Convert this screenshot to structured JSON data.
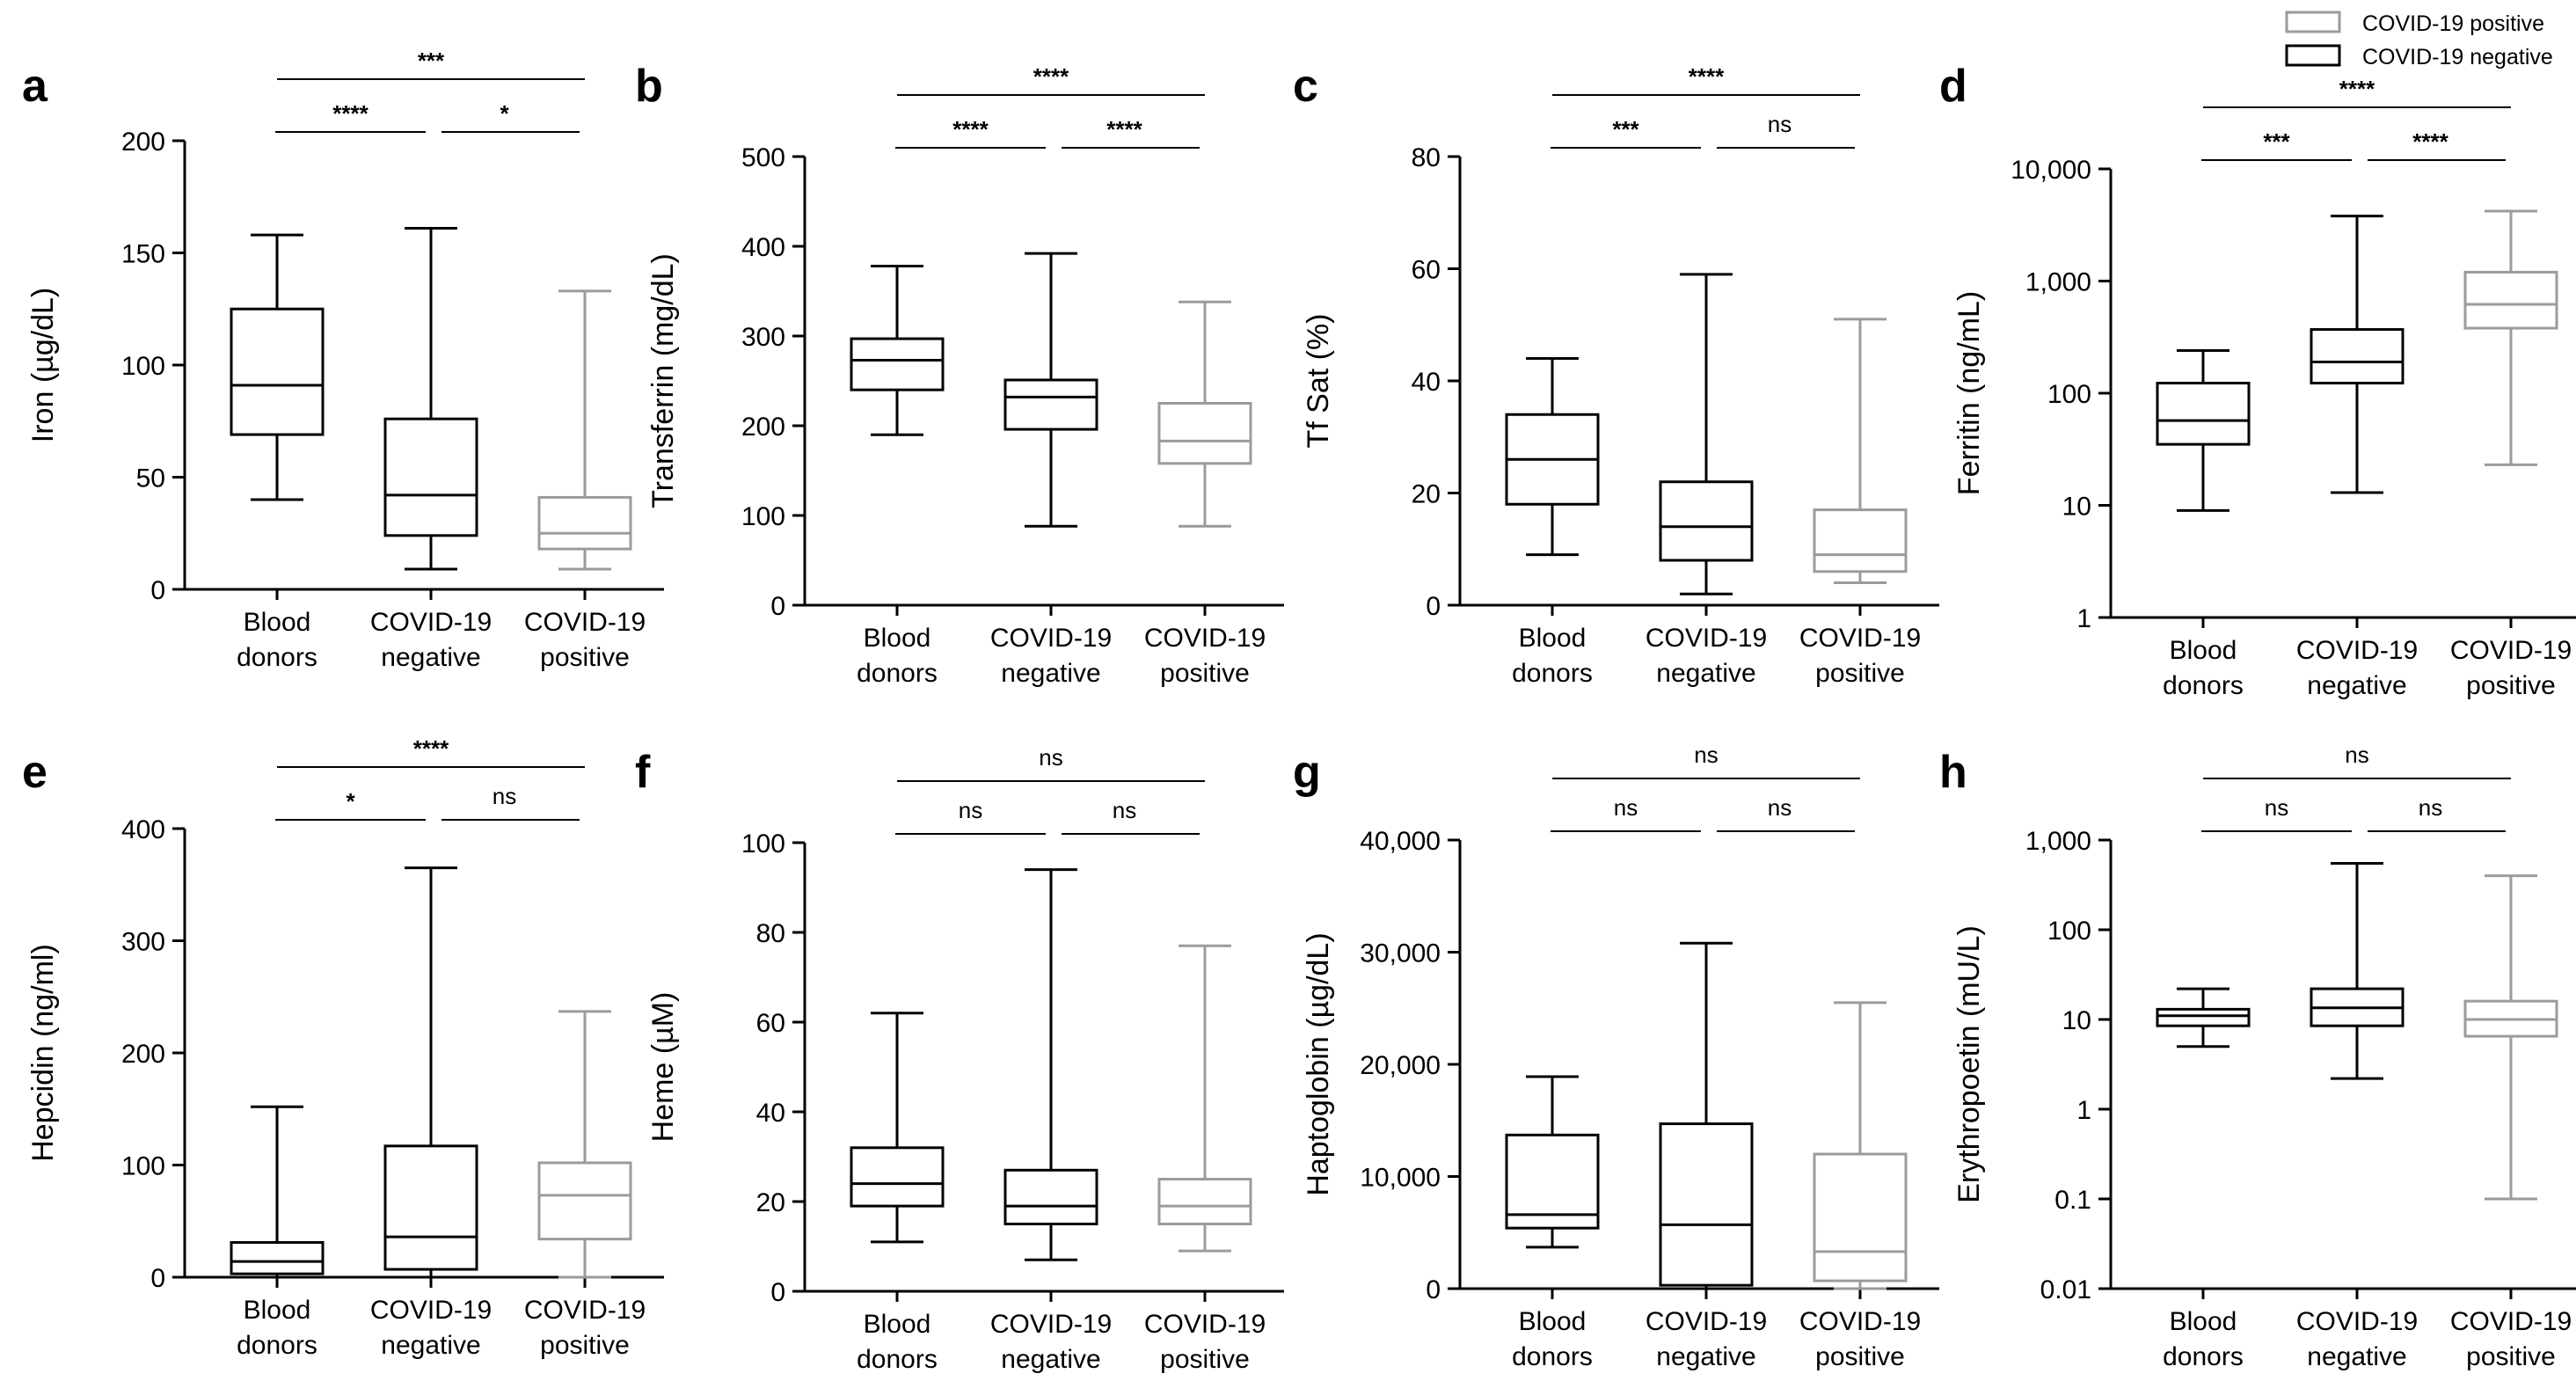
{
  "legend": [
    {
      "label": "COVID-19 positive",
      "color": "#9b9b9b"
    },
    {
      "label": "COVID-19 negative",
      "color": "#000000"
    }
  ],
  "colors": {
    "black": "#000000",
    "gray": "#9b9b9b"
  },
  "chart_data": [
    {
      "id": "a",
      "letter": "a",
      "type": "box",
      "ylabel": "Iron (µg/dL)",
      "scale": "linear",
      "ylim": [
        0,
        200
      ],
      "yticks": [
        0,
        50,
        100,
        150,
        200
      ],
      "ytick_labels": [
        "0",
        "50",
        "100",
        "150",
        "200"
      ],
      "categories": [
        [
          "Blood",
          "donors"
        ],
        [
          "COVID-19",
          "negative"
        ],
        [
          "COVID-19",
          "positive"
        ]
      ],
      "series": [
        {
          "name": "Blood donors",
          "color": "black",
          "min": 40,
          "q1": 69,
          "median": 91,
          "q3": 125,
          "max": 158
        },
        {
          "name": "COVID-19 negative",
          "color": "black",
          "min": 9,
          "q1": 24,
          "median": 42,
          "q3": 76,
          "max": 161
        },
        {
          "name": "COVID-19 positive",
          "color": "gray",
          "min": 9,
          "q1": 18,
          "median": 25,
          "q3": 41,
          "max": 133
        }
      ],
      "significance": [
        {
          "from": 0,
          "to": 1,
          "label": "****",
          "level": 1
        },
        {
          "from": 1,
          "to": 2,
          "label": "*",
          "level": 1
        },
        {
          "from": 0,
          "to": 2,
          "label": "***",
          "level": 2
        }
      ]
    },
    {
      "id": "b",
      "letter": "b",
      "type": "box",
      "ylabel": "Transferrin (mg/dL)",
      "scale": "linear",
      "ylim": [
        0,
        500
      ],
      "yticks": [
        0,
        100,
        200,
        300,
        400,
        500
      ],
      "ytick_labels": [
        "0",
        "100",
        "200",
        "300",
        "400",
        "500"
      ],
      "categories": [
        [
          "Blood",
          "donors"
        ],
        [
          "COVID-19",
          "negative"
        ],
        [
          "COVID-19",
          "positive"
        ]
      ],
      "series": [
        {
          "name": "Blood donors",
          "color": "black",
          "min": 190,
          "q1": 240,
          "median": 273,
          "q3": 297,
          "max": 378
        },
        {
          "name": "COVID-19 negative",
          "color": "black",
          "min": 88,
          "q1": 196,
          "median": 232,
          "q3": 251,
          "max": 392
        },
        {
          "name": "COVID-19 positive",
          "color": "gray",
          "min": 88,
          "q1": 158,
          "median": 183,
          "q3": 225,
          "max": 338
        }
      ],
      "significance": [
        {
          "from": 0,
          "to": 1,
          "label": "****",
          "level": 1
        },
        {
          "from": 1,
          "to": 2,
          "label": "****",
          "level": 1
        },
        {
          "from": 0,
          "to": 2,
          "label": "****",
          "level": 2
        }
      ]
    },
    {
      "id": "c",
      "letter": "c",
      "type": "box",
      "ylabel": "Tf Sat (%)",
      "scale": "linear",
      "ylim": [
        0,
        80
      ],
      "yticks": [
        0,
        20,
        40,
        60,
        80
      ],
      "ytick_labels": [
        "0",
        "20",
        "40",
        "60",
        "80"
      ],
      "categories": [
        [
          "Blood",
          "donors"
        ],
        [
          "COVID-19",
          "negative"
        ],
        [
          "COVID-19",
          "positive"
        ]
      ],
      "series": [
        {
          "name": "Blood donors",
          "color": "black",
          "min": 9,
          "q1": 18,
          "median": 26,
          "q3": 34,
          "max": 44
        },
        {
          "name": "COVID-19 negative",
          "color": "black",
          "min": 2,
          "q1": 8,
          "median": 14,
          "q3": 22,
          "max": 59
        },
        {
          "name": "COVID-19 positive",
          "color": "gray",
          "min": 4,
          "q1": 6,
          "median": 9,
          "q3": 17,
          "max": 51
        }
      ],
      "significance": [
        {
          "from": 0,
          "to": 1,
          "label": "***",
          "level": 1
        },
        {
          "from": 1,
          "to": 2,
          "label": "ns",
          "level": 1
        },
        {
          "from": 0,
          "to": 2,
          "label": "****",
          "level": 2
        }
      ]
    },
    {
      "id": "d",
      "letter": "d",
      "type": "box",
      "ylabel": "Ferritin (ng/mL)",
      "scale": "log",
      "ylim": [
        1,
        10000
      ],
      "yticks": [
        1,
        10,
        100,
        1000,
        10000
      ],
      "ytick_labels": [
        "1",
        "10",
        "100",
        "1,000",
        "10,000"
      ],
      "categories": [
        [
          "Blood",
          "donors"
        ],
        [
          "COVID-19",
          "negative"
        ],
        [
          "COVID-19",
          "positive"
        ]
      ],
      "series": [
        {
          "name": "Blood donors",
          "color": "black",
          "min": 9,
          "q1": 35,
          "median": 57,
          "q3": 123,
          "max": 240
        },
        {
          "name": "COVID-19 negative",
          "color": "black",
          "min": 13,
          "q1": 123,
          "median": 190,
          "q3": 370,
          "max": 3800
        },
        {
          "name": "COVID-19 positive",
          "color": "gray",
          "min": 23,
          "q1": 380,
          "median": 620,
          "q3": 1200,
          "max": 4200
        }
      ],
      "significance": [
        {
          "from": 0,
          "to": 1,
          "label": "***",
          "level": 1
        },
        {
          "from": 1,
          "to": 2,
          "label": "****",
          "level": 1
        },
        {
          "from": 0,
          "to": 2,
          "label": "****",
          "level": 2
        }
      ]
    },
    {
      "id": "e",
      "letter": "e",
      "type": "box",
      "ylabel": "Hepcidin (ng/ml)",
      "scale": "linear",
      "ylim": [
        0,
        400
      ],
      "yticks": [
        0,
        100,
        200,
        300,
        400
      ],
      "ytick_labels": [
        "0",
        "100",
        "200",
        "300",
        "400"
      ],
      "categories": [
        [
          "Blood",
          "donors"
        ],
        [
          "COVID-19",
          "negative"
        ],
        [
          "COVID-19",
          "positive"
        ]
      ],
      "series": [
        {
          "name": "Blood donors",
          "color": "black",
          "min": 0,
          "q1": 3,
          "median": 14,
          "q3": 31,
          "max": 152
        },
        {
          "name": "COVID-19 negative",
          "color": "black",
          "min": 0,
          "q1": 7,
          "median": 36,
          "q3": 117,
          "max": 365
        },
        {
          "name": "COVID-19 positive",
          "color": "gray",
          "min": 0,
          "q1": 34,
          "median": 73,
          "q3": 102,
          "max": 237
        }
      ],
      "significance": [
        {
          "from": 0,
          "to": 1,
          "label": "*",
          "level": 1
        },
        {
          "from": 1,
          "to": 2,
          "label": "ns",
          "level": 1
        },
        {
          "from": 0,
          "to": 2,
          "label": "****",
          "level": 2
        }
      ]
    },
    {
      "id": "f",
      "letter": "f",
      "type": "box",
      "ylabel": "Heme (µM)",
      "scale": "linear",
      "ylim": [
        0,
        100
      ],
      "yticks": [
        0,
        20,
        40,
        60,
        80,
        100
      ],
      "ytick_labels": [
        "0",
        "20",
        "40",
        "60",
        "80",
        "100"
      ],
      "categories": [
        [
          "Blood",
          "donors"
        ],
        [
          "COVID-19",
          "negative"
        ],
        [
          "COVID-19",
          "positive"
        ]
      ],
      "series": [
        {
          "name": "Blood donors",
          "color": "black",
          "min": 11,
          "q1": 19,
          "median": 24,
          "q3": 32,
          "max": 62
        },
        {
          "name": "COVID-19 negative",
          "color": "black",
          "min": 7,
          "q1": 15,
          "median": 19,
          "q3": 27,
          "max": 94
        },
        {
          "name": "COVID-19 positive",
          "color": "gray",
          "min": 9,
          "q1": 15,
          "median": 19,
          "q3": 25,
          "max": 77
        }
      ],
      "significance": [
        {
          "from": 0,
          "to": 1,
          "label": "ns",
          "level": 1
        },
        {
          "from": 1,
          "to": 2,
          "label": "ns",
          "level": 1
        },
        {
          "from": 0,
          "to": 2,
          "label": "ns",
          "level": 2
        }
      ]
    },
    {
      "id": "g",
      "letter": "g",
      "type": "box",
      "ylabel": "Haptoglobin (µg/dL)",
      "scale": "linear",
      "ylim": [
        0,
        40000
      ],
      "yticks": [
        0,
        10000,
        20000,
        30000,
        40000
      ],
      "ytick_labels": [
        "0",
        "10,000",
        "20,000",
        "30,000",
        "40,000"
      ],
      "categories": [
        [
          "Blood",
          "donors"
        ],
        [
          "COVID-19",
          "negative"
        ],
        [
          "COVID-19",
          "positive"
        ]
      ],
      "series": [
        {
          "name": "Blood donors",
          "color": "black",
          "min": 3700,
          "q1": 5400,
          "median": 6600,
          "q3": 13700,
          "max": 18900
        },
        {
          "name": "COVID-19 negative",
          "color": "black",
          "min": 0,
          "q1": 300,
          "median": 5700,
          "q3": 14700,
          "max": 30800
        },
        {
          "name": "COVID-19 positive",
          "color": "gray",
          "min": 0,
          "q1": 700,
          "median": 3300,
          "q3": 12000,
          "max": 25500
        }
      ],
      "significance": [
        {
          "from": 0,
          "to": 1,
          "label": "ns",
          "level": 1
        },
        {
          "from": 1,
          "to": 2,
          "label": "ns",
          "level": 1
        },
        {
          "from": 0,
          "to": 2,
          "label": "ns",
          "level": 2
        }
      ]
    },
    {
      "id": "h",
      "letter": "h",
      "type": "box",
      "ylabel": "Erythropoetin (mU/L)",
      "scale": "log",
      "ylim": [
        0.01,
        1000
      ],
      "yticks": [
        0.01,
        0.1,
        1,
        10,
        100,
        1000
      ],
      "ytick_labels": [
        "0.01",
        "0.1",
        "1",
        "10",
        "100",
        "1,000"
      ],
      "categories": [
        [
          "Blood",
          "donors"
        ],
        [
          "COVID-19",
          "negative"
        ],
        [
          "COVID-19",
          "positive"
        ]
      ],
      "series": [
        {
          "name": "Blood donors",
          "color": "black",
          "min": 5,
          "q1": 8.5,
          "median": 11,
          "q3": 13,
          "max": 22
        },
        {
          "name": "COVID-19 negative",
          "color": "black",
          "min": 2.2,
          "q1": 8.5,
          "median": 13.5,
          "q3": 22,
          "max": 550
        },
        {
          "name": "COVID-19 positive",
          "color": "gray",
          "min": 0.1,
          "q1": 6.5,
          "median": 10,
          "q3": 16,
          "max": 400
        }
      ],
      "significance": [
        {
          "from": 0,
          "to": 1,
          "label": "ns",
          "level": 1
        },
        {
          "from": 1,
          "to": 2,
          "label": "ns",
          "level": 1
        },
        {
          "from": 0,
          "to": 2,
          "label": "ns",
          "level": 2
        }
      ]
    }
  ]
}
